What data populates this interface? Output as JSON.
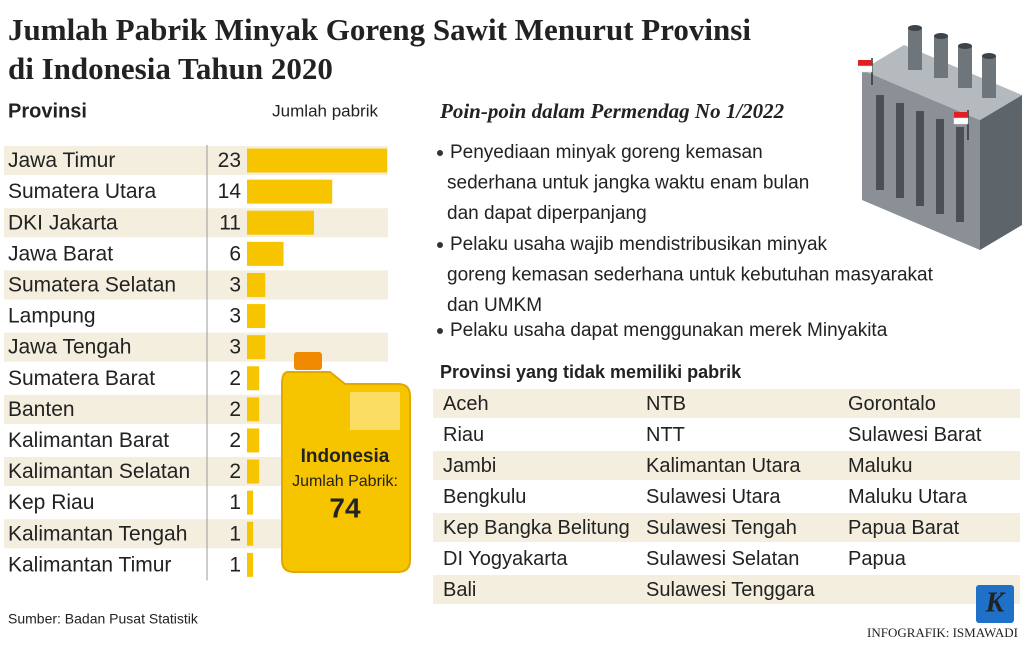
{
  "chart_data": {
    "type": "bar",
    "orientation": "horizontal",
    "title": [
      "Jumlah Pabrik Minyak Goreng Sawit Menurut Provinsi",
      "di Indonesia Tahun 2020"
    ],
    "category_header": "Provinsi",
    "value_header": "Jumlah pabrik",
    "categories": [
      "Jawa Timur",
      "Sumatera Utara",
      "DKI Jakarta",
      "Jawa Barat",
      "Sumatera Selatan",
      "Lampung",
      "Jawa Tengah",
      "Sumatera Barat",
      "Banten",
      "Kalimantan Barat",
      "Kalimantan Selatan",
      "Kep Riau",
      "Kalimantan Tengah",
      "Kalimantan Timur"
    ],
    "values": [
      23,
      14,
      11,
      6,
      3,
      3,
      3,
      2,
      2,
      2,
      2,
      1,
      1,
      1
    ],
    "color": "#f7c500",
    "xlim": [
      0,
      23
    ]
  },
  "total": {
    "title": "Indonesia",
    "label": "Jumlah Pabrik:",
    "value": 74
  },
  "policy": {
    "title": "Poin-poin dalam Permendag No 1/2022",
    "bullets": [
      [
        "Penyediaan minyak goreng kemasan",
        "sederhana untuk jangka waktu enam bulan",
        "dan dapat diperpanjang"
      ],
      [
        "Pelaku usaha wajib mendistribusikan minyak",
        "goreng kemasan sederhana untuk kebutuhan masyarakat",
        "dan UMKM"
      ],
      [
        "Pelaku usaha dapat menggunakan merek Minyakita"
      ]
    ]
  },
  "no_factory": {
    "title": "Provinsi yang tidak memiliki pabrik",
    "rows": [
      [
        "Aceh",
        "NTB",
        "Gorontalo"
      ],
      [
        "Riau",
        "NTT",
        "Sulawesi Barat"
      ],
      [
        "Jambi",
        "Kalimantan Utara",
        "Maluku"
      ],
      [
        "Bengkulu",
        "Sulawesi Utara",
        "Maluku Utara"
      ],
      [
        "Kep Bangka Belitung",
        "Sulawesi Tengah",
        "Papua Barat"
      ],
      [
        "DI Yogyakarta",
        "Sulawesi Selatan",
        "Papua"
      ],
      [
        "Bali",
        "Sulawesi Tenggara"
      ]
    ]
  },
  "source": "Sumber: Badan Pusat Statistik",
  "logo": "K",
  "credit": "INFOGRAFIK: ISMAWADI"
}
